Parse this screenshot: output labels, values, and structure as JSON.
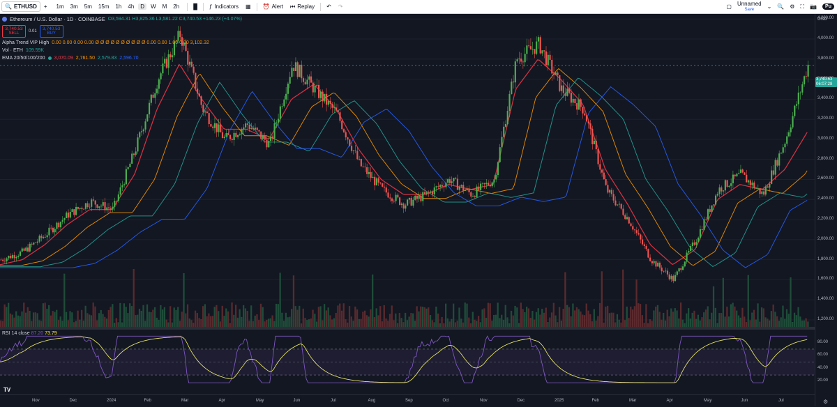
{
  "toolbar": {
    "symbol": "ETHUSD",
    "intervals": [
      "1m",
      "3m",
      "5m",
      "15m",
      "1h",
      "4h",
      "D",
      "W",
      "M",
      "2h"
    ],
    "active_interval": "D",
    "indicators_label": "Indicators",
    "alert_label": "Alert",
    "replay_label": "Replay",
    "layout_name": "Unnamed",
    "layout_status": "Save",
    "publish_label": "Pu"
  },
  "legend": {
    "title": "Ethereum / U.S. Dollar · 1D · COINBASE",
    "ohlc": "O3,594.31 H3,825.36 L3,581.22 C3,740.53 +146.23 (+4.07%)",
    "sell_price": "3,740.53",
    "sell_label": "SELL",
    "spread": "0.01",
    "buy_price": "3,740.53",
    "buy_label": "BUY",
    "alpha_name": "Alpha Trend VIP High",
    "alpha_values": "0.00  0.00  0.00  0.00  Ø  Ø  Ø  Ø  Ø  Ø  Ø  Ø  Ø  Ø  0.00  0.00  1.00  0.00  3,102.32",
    "vol_name": "Vol · ETH",
    "vol_value": "109.59K",
    "ema_name": "EMA 20/50/100/200",
    "ema_v1": "3,070.09",
    "ema_v2": "2,761.50",
    "ema_v3": "2,579.83",
    "ema_v4": "2,596.70"
  },
  "rsi": {
    "name": "RSI 14 close",
    "value1": "87.20",
    "value2": "73.79",
    "levels": [
      "80.00",
      "60.00",
      "40.00",
      "20.00"
    ]
  },
  "price_axis": {
    "currency": "USD",
    "ticks": [
      "4,200.00",
      "4,000.00",
      "3,800.00",
      "3,600.00",
      "3,400.00",
      "3,200.00",
      "3,000.00",
      "2,800.00",
      "2,600.00",
      "2,400.00",
      "2,200.00",
      "2,000.00",
      "1,800.00",
      "1,600.00",
      "1,400.00",
      "1,200.00"
    ],
    "last_price": "3,740.53",
    "countdown": "06:07:28"
  },
  "time_axis": {
    "ticks": [
      "Nov",
      "Dec",
      "2024",
      "Feb",
      "Mar",
      "Apr",
      "May",
      "Jun",
      "Jul",
      "Aug",
      "Sep",
      "Oct",
      "Nov",
      "Dec",
      "2025",
      "Feb",
      "Mar",
      "Apr",
      "May",
      "Jun",
      "Jul"
    ]
  },
  "chart_data": {
    "type": "line",
    "series": [
      {
        "name": "ETHUSD",
        "values": [
          1800,
          1880,
          2050,
          2250,
          2380,
          2300,
          2900,
          3600,
          4050,
          3300,
          3000,
          3150,
          2950,
          3750,
          3500,
          3250,
          2750,
          2500,
          2350,
          2450,
          2600,
          2450,
          2600,
          3800,
          3950,
          3500,
          3300,
          2500,
          2200,
          1800,
          1600,
          2000,
          2500,
          2650,
          2450,
          3000,
          3740
        ]
      },
      {
        "name": "EMA 20",
        "values": [
          1750,
          1800,
          1950,
          2150,
          2300,
          2300,
          2650,
          3300,
          3750,
          3400,
          3100,
          3100,
          3000,
          3400,
          3550,
          3300,
          2900,
          2600,
          2450,
          2450,
          2550,
          2500,
          2550,
          3500,
          3800,
          3600,
          3350,
          2700,
          2350,
          1950,
          1750,
          1900,
          2400,
          2550,
          2500,
          2700,
          3070
        ]
      }
    ],
    "x_start": "Oct 2023",
    "x_end": "Jul 2025",
    "ylim": [
      1200,
      4250
    ]
  },
  "colors": {
    "bull": "#4caf50",
    "bear": "#ef5350",
    "background": "#131722",
    "rsi_line": "#7e57c2",
    "rsi_signal": "#e1e066"
  }
}
